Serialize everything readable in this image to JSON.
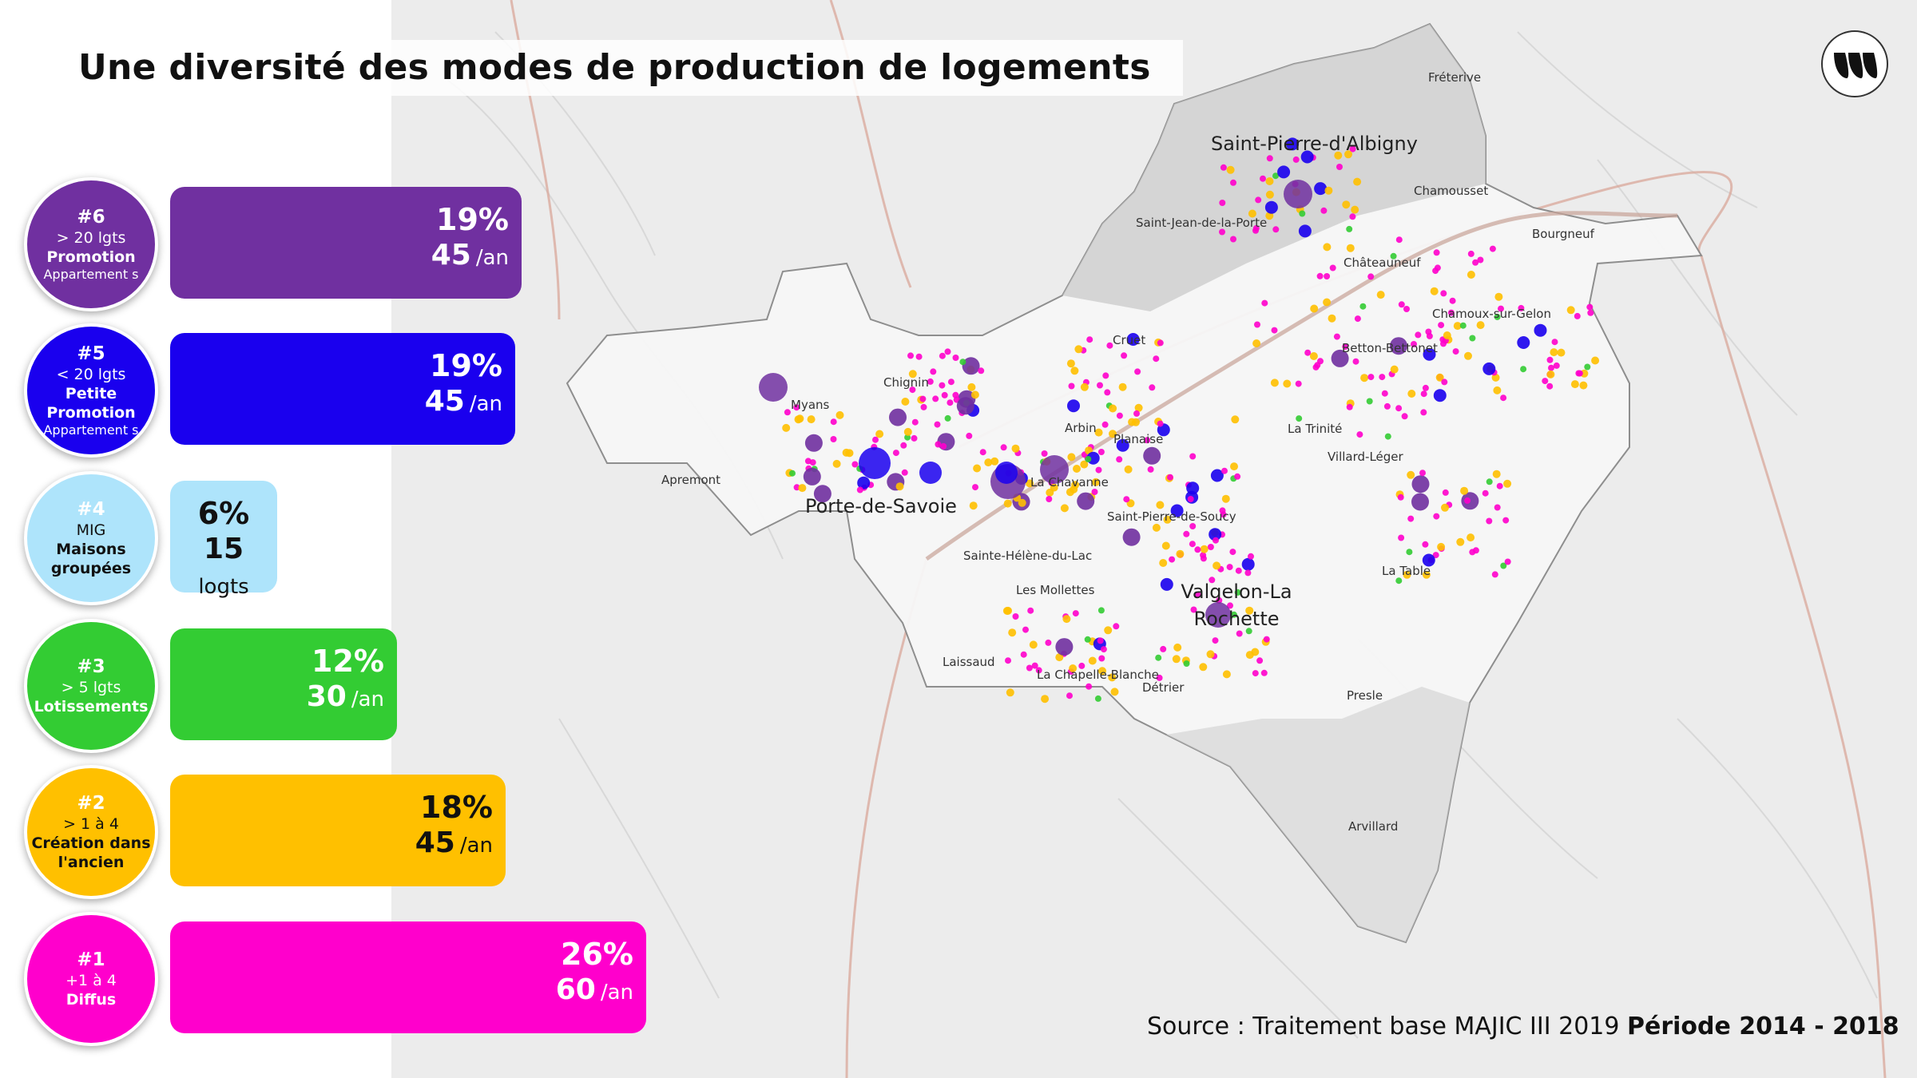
{
  "title": "Une diversité des modes de production de logements",
  "legend": [
    {
      "rank": "#6",
      "line1": "> 20 lgts",
      "line2": "Promotion",
      "line3": "Appartement s",
      "pct": "19%",
      "value": "45",
      "unit": "/an",
      "color": "#7030a0",
      "text_color": "#ffffff"
    },
    {
      "rank": "#5",
      "line1": "< 20 lgts",
      "line2": "Petite Promotion",
      "line3": "Appartement s",
      "pct": "19%",
      "value": "45",
      "unit": "/an",
      "color": "#1a00ee",
      "text_color": "#ffffff"
    },
    {
      "rank": "#4",
      "line1": "MIG",
      "line2": "Maisons groupées",
      "line3": "",
      "pct": "6%",
      "value": "15",
      "unit": "logts",
      "color": "#aee4fb",
      "text_color": "#111111"
    },
    {
      "rank": "#3",
      "line1": "> 5 lgts",
      "line2": "Lotissements",
      "line3": "",
      "pct": "12%",
      "value": "30",
      "unit": "/an",
      "color": "#33cc33",
      "text_color": "#ffffff"
    },
    {
      "rank": "#2",
      "line1": "> 1 à 4",
      "line2": "Création dans l'ancien",
      "line3": "",
      "pct": "18%",
      "value": "45",
      "unit": "/an",
      "color": "#ffc000",
      "text_color": "#111111"
    },
    {
      "rank": "#1",
      "line1": "+1 à 4",
      "line2": "Diffus",
      "line3": "",
      "pct": "26%",
      "value": "60",
      "unit": "/an",
      "color": "#ff00cc",
      "text_color": "#ffffff"
    }
  ],
  "map": {
    "labels": [
      "Fréterive",
      "Saint-Pierre-d'Albigny",
      "Chamousset",
      "Saint-Jean-de-la-Porte",
      "Bourgneuf",
      "Châteauneuf",
      "Chamoux-sur-Gelon",
      "Cruet",
      "Betton-Bettonet",
      "Chignin",
      "Myans",
      "Arbin",
      "Planaise",
      "Apremont",
      "Porte-de-Savoie",
      "La Chavanne",
      "La Trinité",
      "Villard-Léger",
      "Saint-Pierre-de-Soucy",
      "Sainte-Hélène-du-Lac",
      "Les Mollettes",
      "Valgelon-La Rochette",
      "La Table",
      "Laissaud",
      "La Chapelle-Blanche",
      "Détrier",
      "Presle",
      "Arvillard"
    ]
  },
  "source": {
    "text": "Source : Traitement base MAJIC III 2019 ",
    "period": "Période 2014 - 2018"
  }
}
